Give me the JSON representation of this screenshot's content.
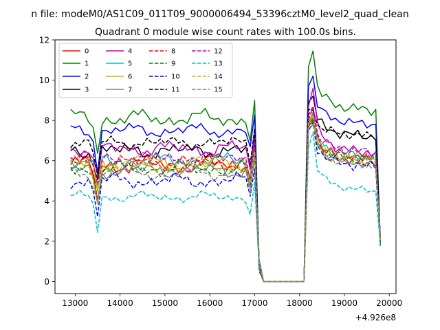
{
  "chart_data": {
    "type": "line",
    "suptitle": "n file: modeM0/AS1C09_011T09_9000006494_53396cztM0_level2_quad_clean",
    "title": "Quadrant 0 module wise count rates with 100.0s bins.",
    "xlabel": "",
    "ylabel": "",
    "x_offset_label": "+4.926e8",
    "xlim": [
      12550,
      20150
    ],
    "ylim": [
      -0.6,
      12
    ],
    "xticks": [
      13000,
      14000,
      15000,
      16000,
      17000,
      18000,
      19000,
      20000
    ],
    "xtick_labels": [
      "13000",
      "14000",
      "15000",
      "16000",
      "17000",
      "18000",
      "19000",
      "20000"
    ],
    "yticks": [
      0,
      2,
      4,
      6,
      8,
      10,
      12
    ],
    "ytick_labels": [
      "0",
      "2",
      "4",
      "6",
      "8",
      "10",
      "12"
    ],
    "grid": false,
    "legend": {
      "placement": "top-left",
      "columns": 4
    },
    "x_start": 12900,
    "x_step": 100,
    "x_count": 70,
    "series": [
      {
        "name": "0",
        "color": "#ff0000",
        "dash": "solid",
        "base": 5.8,
        "a": 0.25,
        "v": 0.35,
        "peak": 8.0,
        "after": 6.2
      },
      {
        "name": "1",
        "color": "#008000",
        "dash": "solid",
        "base": 8.1,
        "a": 0.25,
        "v": 0.3,
        "peak": 11.45,
        "after": 8.7
      },
      {
        "name": "2",
        "color": "#0000ff",
        "dash": "solid",
        "base": 7.5,
        "a": 0.2,
        "v": 0.25,
        "peak": 10.2,
        "after": 8.0
      },
      {
        "name": "3",
        "color": "#000000",
        "dash": "solid",
        "base": 6.5,
        "a": 0.2,
        "v": 0.3,
        "peak": 9.2,
        "after": 7.4
      },
      {
        "name": "4",
        "color": "#bf00bf",
        "dash": "solid",
        "base": 6.6,
        "a": 0.2,
        "v": 0.3,
        "peak": 9.6,
        "after": 6.6
      },
      {
        "name": "5",
        "color": "#00bfbf",
        "dash": "solid",
        "base": 6.0,
        "a": 0.2,
        "v": 0.3,
        "peak": 8.3,
        "after": 6.4
      },
      {
        "name": "6",
        "color": "#bfbf00",
        "dash": "solid",
        "base": 5.8,
        "a": 0.25,
        "v": 0.35,
        "peak": 8.2,
        "after": 6.1
      },
      {
        "name": "7",
        "color": "#808080",
        "dash": "solid",
        "base": 5.5,
        "a": 0.2,
        "v": 0.25,
        "peak": 8.4,
        "after": 6.0
      },
      {
        "name": "8",
        "color": "#ff0000",
        "dash": "dashed",
        "base": 5.9,
        "a": 0.2,
        "v": 0.3,
        "peak": 8.6,
        "after": 6.3
      },
      {
        "name": "9",
        "color": "#008000",
        "dash": "dashed",
        "base": 5.6,
        "a": 0.2,
        "v": 0.3,
        "peak": 8.1,
        "after": 6.2
      },
      {
        "name": "10",
        "color": "#0000ff",
        "dash": "dashed",
        "base": 5.0,
        "a": 0.2,
        "v": 0.3,
        "peak": 7.9,
        "after": 5.9
      },
      {
        "name": "11",
        "color": "#000000",
        "dash": "dashed",
        "base": 6.9,
        "a": 0.15,
        "v": 0.25,
        "peak": 8.5,
        "after": 7.4
      },
      {
        "name": "12",
        "color": "#bf00bf",
        "dash": "dashed",
        "base": 6.1,
        "a": 0.2,
        "v": 0.3,
        "peak": 8.7,
        "after": 6.6
      },
      {
        "name": "13",
        "color": "#00bfbf",
        "dash": "dashed",
        "base": 4.2,
        "a": 0.15,
        "v": 0.2,
        "peak": 7.4,
        "after": 4.7
      },
      {
        "name": "14",
        "color": "#bfbf00",
        "dash": "dashed",
        "base": 5.8,
        "a": 0.2,
        "v": 0.3,
        "peak": 8.2,
        "after": 6.3
      },
      {
        "name": "15",
        "color": "#808080",
        "dash": "dashed",
        "base": 5.4,
        "a": 0.2,
        "v": 0.25,
        "peak": 7.8,
        "after": 6.0
      }
    ]
  }
}
